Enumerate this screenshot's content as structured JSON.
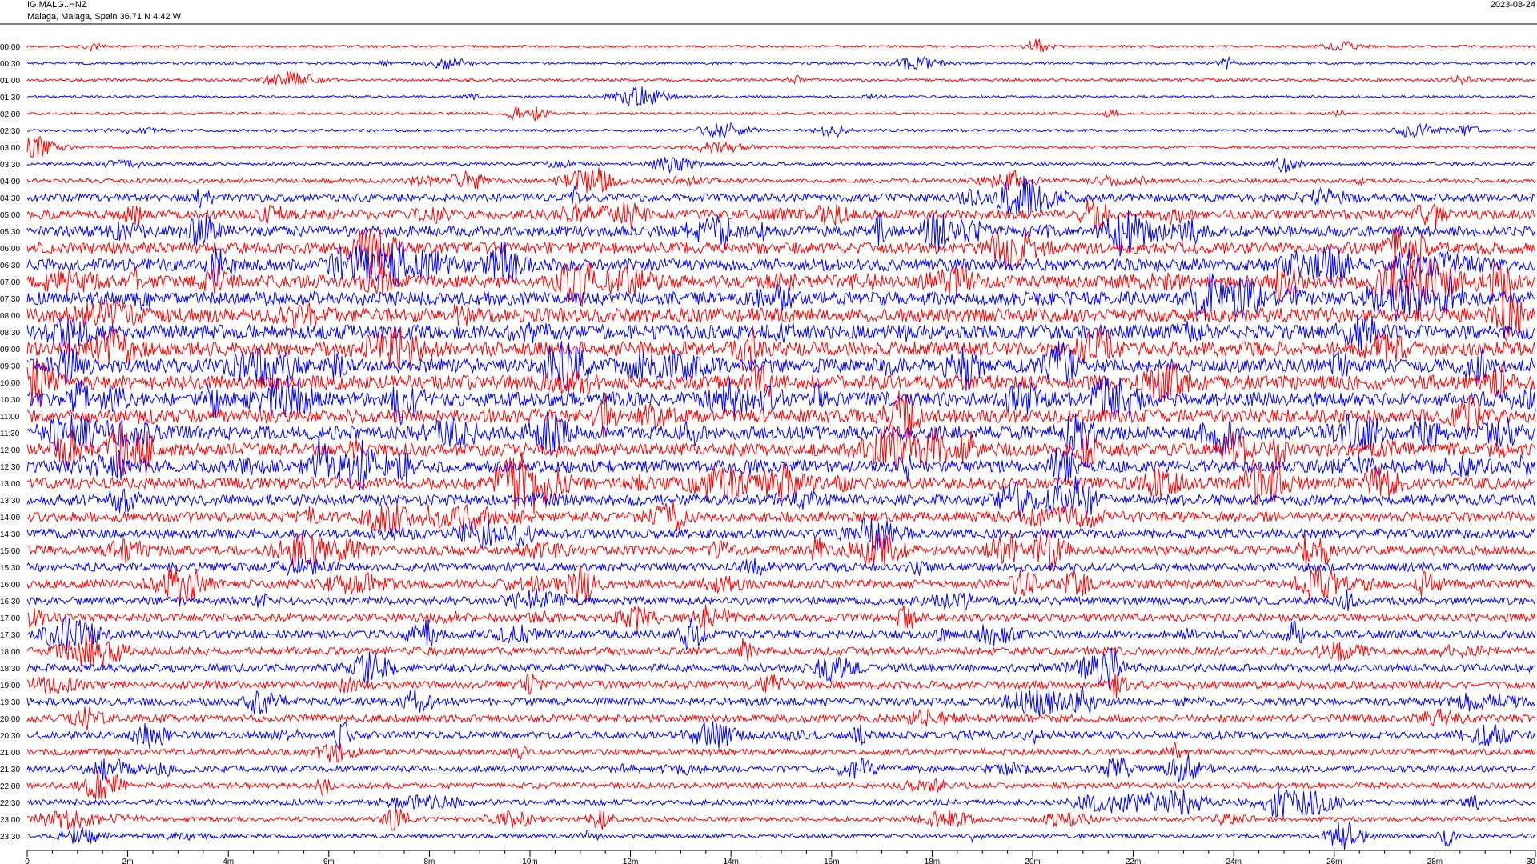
{
  "header": {
    "station": "IG.MALG..HNZ",
    "location": "Malaga, Malaga, Spain  36.71 N 4.42 W",
    "date": "2023-08-24"
  },
  "chart_data": {
    "type": "line",
    "title": "",
    "xlabel": "",
    "ylabel": "",
    "row_labels": [
      "00:00",
      "00:30",
      "01:00",
      "01:30",
      "02:00",
      "02:30",
      "03:00",
      "03:30",
      "04:00",
      "04:30",
      "05:00",
      "05:30",
      "06:00",
      "06:30",
      "07:00",
      "07:30",
      "08:00",
      "08:30",
      "09:00",
      "09:30",
      "10:00",
      "10:30",
      "11:00",
      "11:30",
      "12:00",
      "12:30",
      "13:00",
      "13:30",
      "14:00",
      "14:30",
      "15:00",
      "15:30",
      "16:00",
      "16:30",
      "17:00",
      "17:30",
      "18:00",
      "18:30",
      "19:00",
      "19:30",
      "20:00",
      "20:30",
      "21:00",
      "21:30",
      "22:00",
      "22:30",
      "23:00",
      "23:30"
    ],
    "x_ticks": [
      "0",
      "2m",
      "4m",
      "6m",
      "8m",
      "10m",
      "12m",
      "14m",
      "16m",
      "18m",
      "20m",
      "22m",
      "24m",
      "26m",
      "28m",
      "30"
    ],
    "xlim": [
      0,
      30
    ],
    "minor_tick_minutes": 0.5,
    "colors": [
      "#ff0000",
      "#0000ff"
    ],
    "activity_level": [
      0.08,
      0.09,
      0.1,
      0.08,
      0.09,
      0.1,
      0.1,
      0.12,
      0.22,
      0.45,
      0.55,
      0.65,
      0.7,
      0.75,
      0.8,
      0.85,
      0.9,
      0.9,
      0.9,
      0.85,
      0.9,
      0.9,
      0.85,
      0.85,
      0.8,
      0.75,
      0.7,
      0.65,
      0.6,
      0.55,
      0.55,
      0.5,
      0.5,
      0.45,
      0.45,
      0.45,
      0.45,
      0.45,
      0.45,
      0.45,
      0.45,
      0.4,
      0.35,
      0.35,
      0.3,
      0.28,
      0.22,
      0.22
    ]
  }
}
